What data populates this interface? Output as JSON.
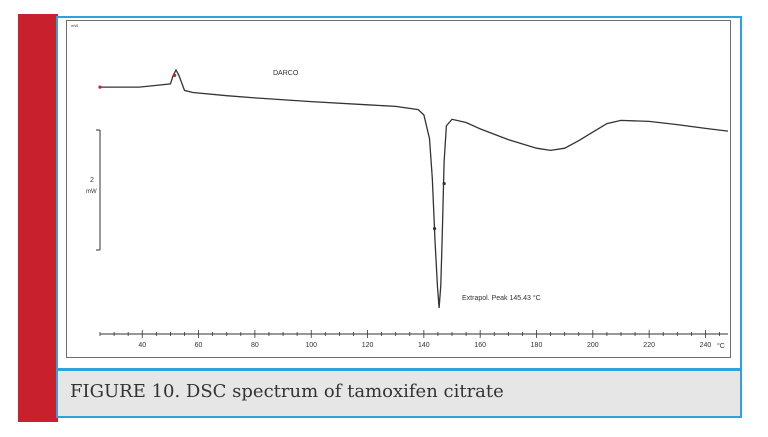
{
  "caption": "FIGURE 10. DSC spectrum of tamoxifen citrate",
  "colors": {
    "accent_red": "#c8202d",
    "frame_blue": "#2aa4db",
    "caption_bg": "#e6e6e6",
    "trace": "#333333"
  },
  "chart_data": {
    "type": "line",
    "title": "DARCO",
    "corner_label": "mW",
    "xlabel": "°C",
    "ylabel": "mW",
    "scale_bar_label": "2",
    "scale_bar_value": 2,
    "xlim": [
      25,
      248
    ],
    "ylim": [
      -20.8,
      1.6
    ],
    "x_ticks": [
      40,
      60,
      80,
      100,
      120,
      140,
      160,
      180,
      200,
      220,
      240
    ],
    "annotation": "Extrapol. Peak   145.43 °C",
    "peak_x": 145.43,
    "series": [
      {
        "x": [
          25,
          39,
          50,
          51,
          52,
          53,
          55,
          58,
          70,
          80,
          100,
          120,
          130,
          138,
          140,
          142,
          143,
          144,
          144.8,
          145.43,
          146,
          146.5,
          147.2,
          148,
          150,
          155,
          160,
          170,
          180,
          185,
          190,
          195,
          200,
          205,
          210,
          220,
          230,
          240,
          248
        ],
        "y": [
          0,
          0,
          0.3,
          1.1,
          1.6,
          1.1,
          -0.3,
          -0.5,
          -0.8,
          -1.0,
          -1.35,
          -1.65,
          -1.8,
          -2.1,
          -2.6,
          -4.8,
          -8.5,
          -14.5,
          -18.5,
          -20.6,
          -18.5,
          -14.0,
          -7.0,
          -3.6,
          -3.0,
          -3.3,
          -3.9,
          -4.9,
          -5.7,
          -5.9,
          -5.7,
          -5.0,
          -4.2,
          -3.4,
          -3.1,
          -3.2,
          -3.5,
          -3.85,
          -4.1
        ]
      }
    ]
  }
}
